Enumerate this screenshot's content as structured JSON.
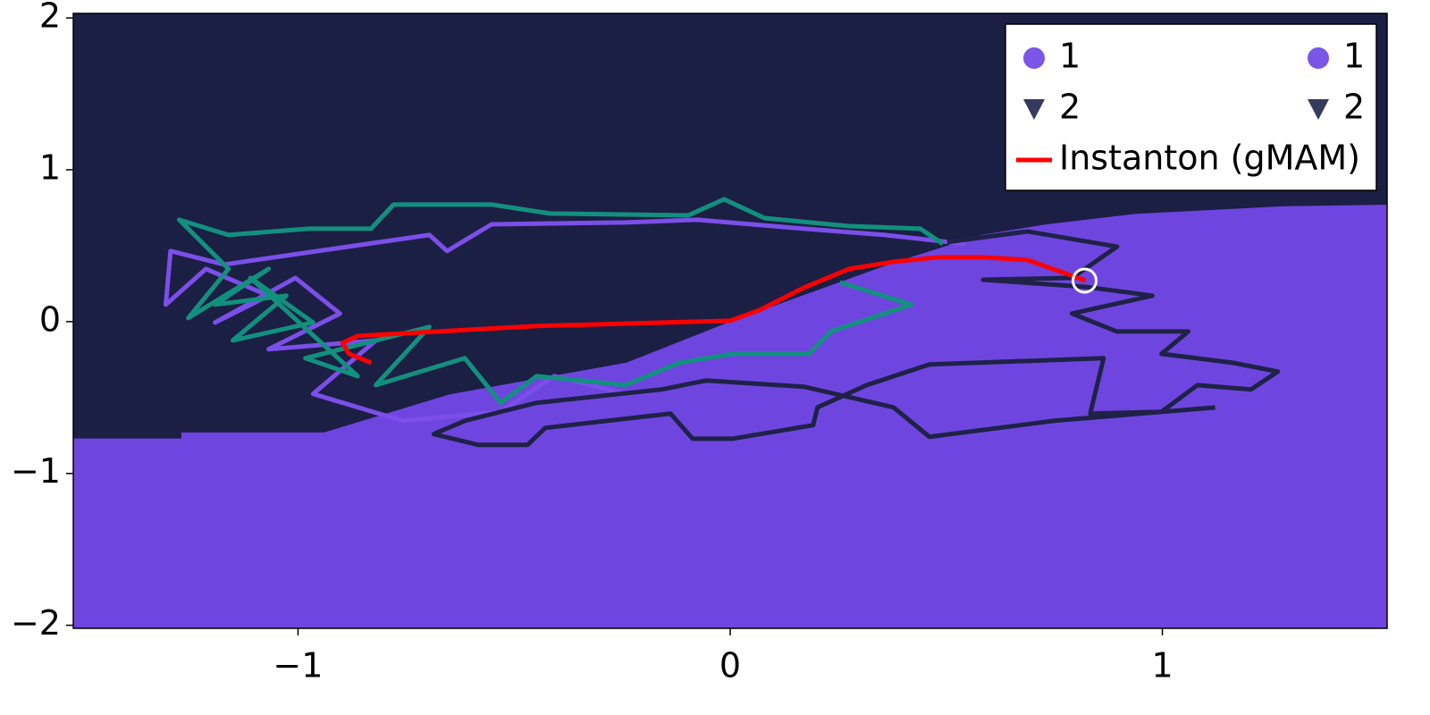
{
  "chart_data": {
    "type": "basins",
    "xlim": [
      -1.52,
      1.52
    ],
    "ylim": [
      -2.02,
      2.03
    ],
    "xticks": [
      {
        "value": -1,
        "label": "−1"
      },
      0,
      1
    ],
    "yticks": [
      {
        "value": -2,
        "label": "−2"
      },
      {
        "value": -1,
        "label": "−1"
      },
      0,
      1,
      2
    ],
    "background_color": "#1b1f44",
    "basin": {
      "color": "#6f45e0",
      "x": [
        -1.52,
        -1.27,
        -1.27,
        -0.94,
        -0.65,
        -0.24,
        0,
        0.38,
        0.58,
        0.73,
        0.94,
        1.28,
        1.52
      ],
      "y": [
        -0.77,
        -0.77,
        -0.73,
        -0.73,
        -0.48,
        -0.27,
        0.0,
        0.39,
        0.57,
        0.64,
        0.71,
        0.76,
        0.77
      ]
    },
    "series": [
      {
        "color": "#7b4fe8",
        "x": [
          0.543,
          0.357,
          0.171,
          -0.076,
          -0.242,
          -0.552,
          -0.655,
          -0.696,
          -1.171,
          -1.295,
          -1.306,
          -1.213,
          -1.068,
          -1.192,
          -1.006,
          -0.903,
          -1.068,
          -0.82,
          -0.965,
          -0.758,
          -0.531,
          -0.407,
          -0.242,
          -0.159
        ],
        "y": [
          0.512,
          0.571,
          0.612,
          0.671,
          0.653,
          0.641,
          0.465,
          0.571,
          0.376,
          0.465,
          0.112,
          0.347,
          0.171,
          -0.006,
          0.288,
          0.053,
          -0.182,
          -0.124,
          -0.476,
          -0.653,
          -0.594,
          -0.359,
          -0.476,
          -0.447
        ]
      },
      {
        "color": "#1e2247",
        "x": [
          0.502,
          0.688,
          0.895,
          0.791,
          0.585,
          0.822,
          0.977,
          0.791,
          0.895,
          1.06,
          0.998,
          1.163,
          1.267,
          1.205,
          1.081,
          0.998,
          0.833,
          0.864,
          0.461,
          0.316,
          0.202,
          0.192,
          0.006,
          -0.087,
          -0.138,
          -0.428,
          -0.469,
          -0.583,
          -0.686,
          -0.614,
          -0.448,
          -0.159,
          -0.056,
          0.171,
          0.378,
          0.461,
          0.75,
          1.122
        ],
        "y": [
          0.524,
          0.594,
          0.494,
          0.288,
          0.276,
          0.229,
          0.171,
          0.053,
          -0.065,
          -0.065,
          -0.212,
          -0.271,
          -0.329,
          -0.447,
          -0.418,
          -0.594,
          -0.606,
          -0.241,
          -0.282,
          -0.418,
          -0.565,
          -0.682,
          -0.771,
          -0.771,
          -0.606,
          -0.7,
          -0.812,
          -0.812,
          -0.741,
          -0.653,
          -0.535,
          -0.447,
          -0.388,
          -0.429,
          -0.565,
          -0.759,
          -0.653,
          -0.565
        ]
      },
      {
        "color": "#12907e",
        "x": [
          0.492,
          0.44,
          0.275,
          0.079,
          -0.014,
          -0.097,
          -0.417,
          -0.552,
          -0.779,
          -0.831,
          -0.975,
          -1.161,
          -1.275,
          -1.161,
          -1.254,
          -1.068,
          -1.192,
          -1.027,
          -1.151,
          -0.965,
          -1.11,
          -0.862,
          -0.983,
          -0.696,
          -0.82,
          -0.614,
          -0.531,
          -0.448,
          -0.242,
          -0.118,
          0.006,
          0.182,
          0.233,
          0.419,
          0.254
        ],
        "y": [
          0.512,
          0.612,
          0.629,
          0.682,
          0.806,
          0.7,
          0.712,
          0.771,
          0.771,
          0.612,
          0.612,
          0.571,
          0.671,
          0.347,
          0.024,
          0.347,
          0.112,
          0.171,
          -0.124,
          -0.006,
          0.288,
          -0.359,
          -0.241,
          -0.035,
          -0.418,
          -0.241,
          -0.535,
          -0.359,
          -0.418,
          -0.271,
          -0.212,
          -0.212,
          -0.065,
          0.112,
          0.259
        ]
      },
      {
        "name": "Instanton (gMAM)",
        "color": "#ff0000",
        "x": [
          0.822,
          0.688,
          0.585,
          0.481,
          0.378,
          0.275,
          0.171,
          0.068,
          0,
          -0.448,
          -0.862,
          -0.897,
          -0.882,
          -0.831
        ],
        "y": [
          0.271,
          0.406,
          0.424,
          0.424,
          0.394,
          0.347,
          0.224,
          0.076,
          0.006,
          -0.029,
          -0.094,
          -0.141,
          -0.212,
          -0.271
        ]
      }
    ],
    "points": {
      "x": [
        0.82
      ],
      "y": [
        0.27
      ],
      "color": "#ffffff"
    },
    "legend": {
      "position": "top-right",
      "entries": [
        {
          "label": "1",
          "marker": "circle",
          "color": "#7b55e6"
        },
        {
          "label": "2",
          "marker": "triangle",
          "color": "#353a5e"
        },
        {
          "label": "1",
          "marker": "circle",
          "color": "#7b55e6"
        },
        {
          "label": "2",
          "marker": "triangle",
          "color": "#353a5e"
        }
      ]
    }
  }
}
